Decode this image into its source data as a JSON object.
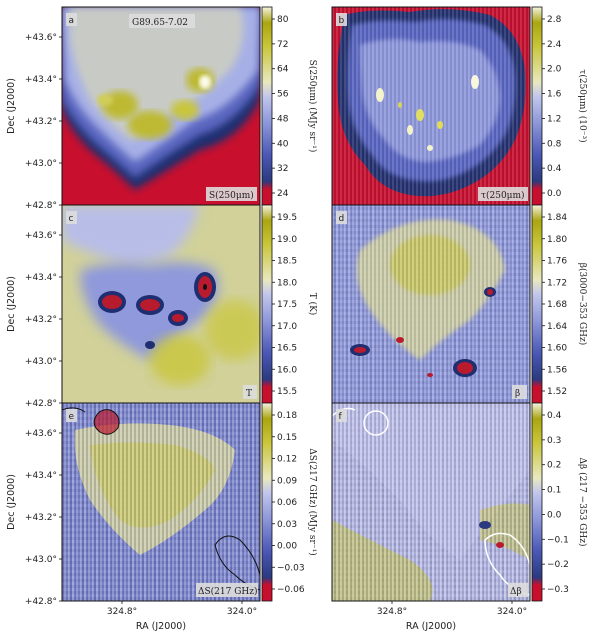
{
  "chart_data": [
    {
      "type": "heatmap",
      "panel": "a",
      "title": "G89.65-7.02",
      "tag": "S(250μm)",
      "colorbar_label": "S(250μm) (MJy sr⁻¹)",
      "colorbar_ticks": [
        "80",
        "72",
        "64",
        "56",
        "48",
        "40",
        "32",
        "24"
      ],
      "colorbar_range": [
        18,
        82
      ],
      "ylabel": "Dec (J2000)",
      "yticks": [
        "+43.6°",
        "+43.4°",
        "+43.2°",
        "+43.0°",
        "+42.8°"
      ],
      "xticks": []
    },
    {
      "type": "heatmap",
      "panel": "b",
      "tag": "τ(250μm)",
      "colorbar_label": "τ(250μm) (10⁻³)",
      "colorbar_ticks": [
        "2.8",
        "2.4",
        "2.0",
        "1.6",
        "1.2",
        "0.8",
        "0.4",
        "0.0"
      ],
      "colorbar_range": [
        -0.2,
        2.9
      ]
    },
    {
      "type": "heatmap",
      "panel": "c",
      "tag": "T",
      "colorbar_label": "T (K)",
      "colorbar_ticks": [
        "19.5",
        "19.0",
        "18.5",
        "18.0",
        "17.5",
        "17.0",
        "16.5",
        "16.0",
        "15.5"
      ],
      "colorbar_range": [
        15.2,
        19.7
      ],
      "ylabel": "Dec (J2000)",
      "yticks": [
        "+43.6°",
        "+43.4°",
        "+43.2°",
        "+43.0°",
        "+42.8°"
      ]
    },
    {
      "type": "heatmap",
      "panel": "d",
      "tag": "β",
      "colorbar_label": "β(3000−353 GHz)",
      "colorbar_ticks": [
        "1.84",
        "1.80",
        "1.76",
        "1.72",
        "1.68",
        "1.64",
        "1.60",
        "1.56",
        "1.52"
      ],
      "colorbar_range": [
        1.49,
        1.87
      ]
    },
    {
      "type": "heatmap",
      "panel": "e",
      "tag": "ΔS(217 GHz)",
      "colorbar_label": "ΔS(217 GHz) (MJy sr⁻¹)",
      "colorbar_ticks": [
        "0.18",
        "0.15",
        "0.12",
        "0.09",
        "0.06",
        "0.03",
        "0.00",
        "−0.03",
        "−0.06"
      ],
      "colorbar_range": [
        -0.09,
        0.2
      ],
      "ylabel": "Dec (J2000)",
      "yticks": [
        "+43.6°",
        "+43.4°",
        "+43.2°",
        "+43.0°",
        "+42.8°"
      ],
      "xlabel": "RA (J2000)",
      "xticks": [
        "324.8°",
        "324.0°"
      ]
    },
    {
      "type": "heatmap",
      "panel": "f",
      "tag": "Δβ",
      "colorbar_label": "Δβ (217 −353 GHz)",
      "colorbar_ticks": [
        "0.4",
        "0.3",
        "0.2",
        "0.1",
        "0.0",
        "−0.1",
        "−0.2",
        "−0.3"
      ],
      "colorbar_range": [
        -0.37,
        0.45
      ],
      "xlabel": "RA (J2000)",
      "xticks": [
        "324.8°",
        "324.0°"
      ]
    }
  ],
  "colors": {
    "low": "#c8102e",
    "mid_low": "#1a2e6e",
    "mid": "#a7b0e6",
    "mid_high": "#e6e6b0",
    "high": "#b8b414",
    "peak": "#ffffff"
  }
}
